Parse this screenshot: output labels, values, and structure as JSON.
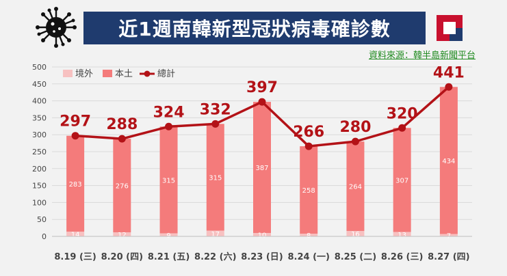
{
  "title": "近1週南韓新型冠狀病毒確診數",
  "source": "資料來源：韓半島新聞平台",
  "chart_data": {
    "type": "bar",
    "categories": [
      "8.19 (三)",
      "8.20 (四)",
      "8.21 (五)",
      "8.22 (六)",
      "8.23 (日)",
      "8.24 (一)",
      "8.25 (二)",
      "8.26 (三)",
      "8.27 (四)"
    ],
    "series": [
      {
        "name": "境外",
        "values": [
          14,
          12,
          9,
          17,
          10,
          8,
          16,
          13,
          7
        ],
        "color": "#f7c1c1"
      },
      {
        "name": "本土",
        "values": [
          283,
          276,
          315,
          315,
          387,
          258,
          264,
          307,
          434
        ],
        "color": "#f47b7b"
      },
      {
        "name": "總計",
        "values": [
          297,
          288,
          324,
          332,
          397,
          266,
          280,
          320,
          441
        ],
        "color": "#b31217",
        "type": "line"
      }
    ],
    "ylim": [
      0,
      500
    ],
    "yticks": [
      0,
      50,
      100,
      150,
      200,
      250,
      300,
      350,
      400,
      450,
      500
    ],
    "legend_position": "top-left"
  }
}
